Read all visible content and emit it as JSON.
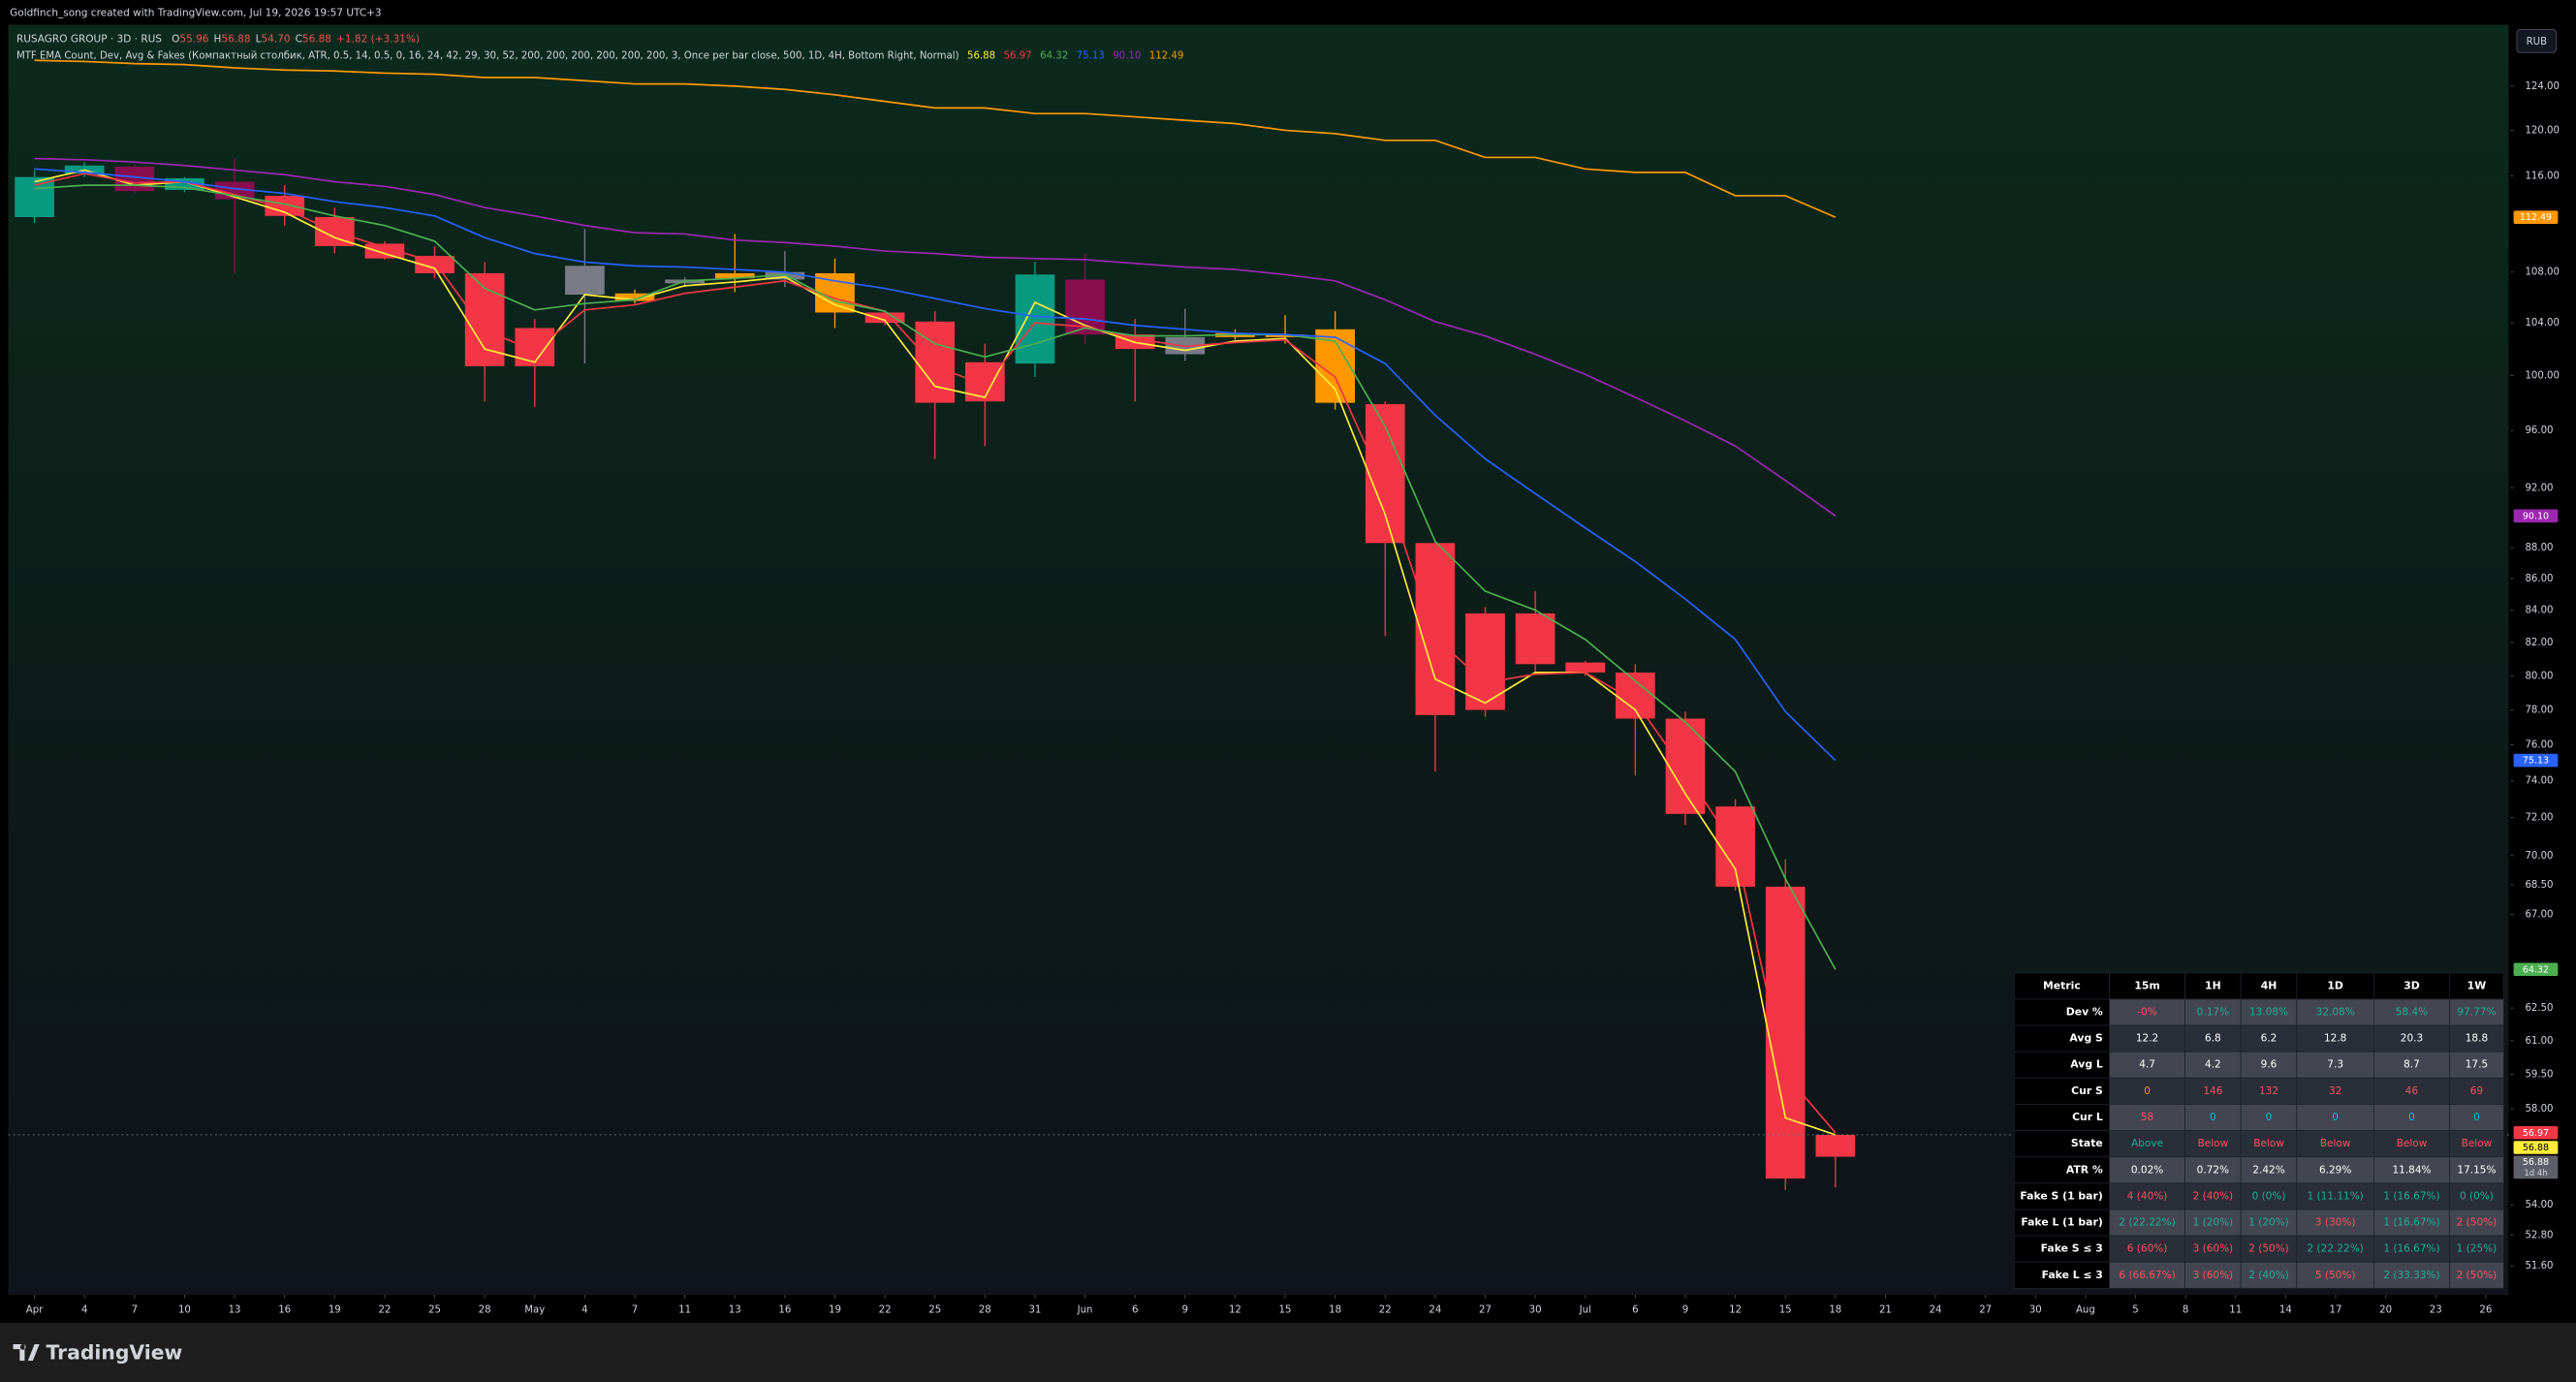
{
  "watermark": "Goldfinch_song created with TradingView.com, Jul 19, 2026 19:57 UTC+3",
  "brand": "TradingView",
  "currency": "RUB",
  "indicator_title": "MTF EMA Count, Dev, Avg & Fakes (Компактный столбик, ATR, 0.5, 14, 0.5, 0, 16, 24, 42, 29, 30, 52, 200, 200, 200, 200, 200, 200, 3, Once per bar close, 500, 1D, 4H, Bottom Right, Normal)",
  "ohlc_legend": [
    {
      "label": "O",
      "value": "55.96"
    },
    {
      "label": "H",
      "value": "56.88"
    },
    {
      "label": "L",
      "value": "54.70"
    },
    {
      "label": "C",
      "value": "56.88"
    }
  ],
  "change": "+1.82 (+3.31%)",
  "chart_data": {
    "type": "candlestick",
    "title": "RUSAGRO GROUP · 3D · RUS",
    "log_scale": true,
    "grid": false,
    "categories": [
      "Apr",
      "4",
      "7",
      "10",
      "13",
      "16",
      "19",
      "22",
      "25",
      "28",
      "May",
      "4",
      "7",
      "11",
      "13",
      "16",
      "19",
      "22",
      "25",
      "28",
      "31",
      "Jun",
      "6",
      "9",
      "12",
      "15",
      "18",
      "22",
      "24",
      "27",
      "30",
      "Jul",
      "6",
      "9",
      "12",
      "15",
      "18",
      "21",
      "24",
      "27",
      "30",
      "Aug",
      "5",
      "8",
      "11",
      "14",
      "17",
      "20",
      "23",
      "26"
    ],
    "open": [
      112.5,
      116.2,
      116.8,
      114.8,
      115.5,
      114.3,
      112.5,
      110.3,
      109.3,
      107.9,
      103.6,
      106.2,
      106.3,
      107.1,
      107.9,
      107.4,
      107.9,
      104.8,
      104.1,
      101.0,
      100.9,
      107.4,
      103.1,
      102.9,
      103.2,
      103.1,
      103.5,
      97.9,
      88.3,
      83.8,
      83.8,
      80.8,
      80.2,
      77.5,
      72.6,
      68.4,
      55.96,
      null,
      null,
      null,
      null,
      null,
      null,
      null,
      null,
      null,
      null,
      null,
      null,
      null
    ],
    "high": [
      116.5,
      117.2,
      117.0,
      115.9,
      117.5,
      115.2,
      113.3,
      110.5,
      110.1,
      108.8,
      104.3,
      111.5,
      106.6,
      107.6,
      111.1,
      109.7,
      109.1,
      105.0,
      104.9,
      102.4,
      108.8,
      109.5,
      104.3,
      105.1,
      103.5,
      104.6,
      104.9,
      98.1,
      88.4,
      84.2,
      85.2,
      80.9,
      80.7,
      77.9,
      73.0,
      69.8,
      56.88,
      null,
      null,
      null,
      null,
      null,
      null,
      null,
      null,
      null,
      null,
      null,
      null,
      null
    ],
    "low": [
      112.0,
      115.9,
      114.5,
      114.6,
      107.9,
      111.8,
      109.5,
      109.0,
      107.5,
      98.1,
      97.7,
      100.9,
      105.5,
      106.8,
      106.4,
      106.8,
      103.6,
      103.8,
      94.0,
      94.9,
      99.9,
      102.4,
      98.1,
      101.1,
      102.7,
      102.4,
      97.5,
      82.4,
      74.5,
      77.6,
      80.2,
      80.0,
      74.3,
      71.6,
      68.2,
      54.6,
      54.7,
      null,
      null,
      null,
      null,
      null,
      null,
      null,
      null,
      null,
      null,
      null,
      null,
      null
    ],
    "close": [
      115.9,
      116.9,
      114.7,
      115.8,
      114.0,
      112.6,
      110.1,
      109.1,
      107.9,
      100.7,
      100.7,
      108.5,
      105.7,
      107.4,
      107.5,
      108.0,
      104.8,
      104.0,
      98.0,
      98.1,
      107.8,
      103.1,
      102.0,
      101.6,
      102.9,
      102.9,
      98.0,
      88.3,
      77.7,
      78.0,
      80.7,
      80.2,
      77.5,
      72.2,
      68.4,
      55.06,
      56.88,
      null,
      null,
      null,
      null,
      null,
      null,
      null,
      null,
      null,
      null,
      null,
      null,
      null
    ],
    "colors": [
      "#089981",
      "#089981",
      "#880e4f",
      "#089981",
      "#880e4f",
      "#f23645",
      "#f23645",
      "#f23645",
      "#f23645",
      "#f23645",
      "#f23645",
      "#787b86",
      "#ff9800",
      "#787b86",
      "#ff9800",
      "#787b86",
      "#ff9800",
      "#f23645",
      "#f23645",
      "#f23645",
      "#089981",
      "#880e4f",
      "#f23645",
      "#787b86",
      "#ff9800",
      "#ff9800",
      "#ff9800",
      "#f23645",
      "#f23645",
      "#f23645",
      "#f23645",
      "#f23645",
      "#f23645",
      "#f23645",
      "#f23645",
      "#f23645",
      "#f23645",
      null,
      null,
      null,
      null,
      null,
      null,
      null,
      null,
      null,
      null,
      null,
      null,
      null
    ],
    "last_price_label": "56.88",
    "countdown": "1d 4h",
    "series": [
      {
        "color": "#ffeb3b",
        "end_label": "56.88",
        "values": [
          115.5,
          116.5,
          115.2,
          115.5,
          114.2,
          112.9,
          110.8,
          109.5,
          108.3,
          102.0,
          101.0,
          106.2,
          105.8,
          106.9,
          107.2,
          107.6,
          105.4,
          104.2,
          99.2,
          98.4,
          105.6,
          103.8,
          102.5,
          101.9,
          102.6,
          102.8,
          99.0,
          90.2,
          79.8,
          78.4,
          80.2,
          80.2,
          78.0,
          73.3,
          69.3,
          57.6,
          56.88,
          null,
          null,
          null,
          null,
          null,
          null,
          null,
          null,
          null,
          null,
          null,
          null,
          null
        ]
      },
      {
        "color": "#f23645",
        "end_label": "56.97",
        "values": [
          115.2,
          116.2,
          115.4,
          115.5,
          114.4,
          113.2,
          111.3,
          110.0,
          108.8,
          103.4,
          101.9,
          105.0,
          105.4,
          106.3,
          106.8,
          107.3,
          105.9,
          104.9,
          100.7,
          99.3,
          104.0,
          103.7,
          102.8,
          102.2,
          102.5,
          102.7,
          99.9,
          92.0,
          82.3,
          79.6,
          80.1,
          80.2,
          78.5,
          74.5,
          70.4,
          59.5,
          56.97,
          null,
          null,
          null,
          null,
          null,
          null,
          null,
          null,
          null,
          null,
          null,
          null,
          null
        ]
      },
      {
        "color": "#4caf50",
        "end_label": "64.32",
        "values": [
          114.9,
          115.2,
          115.2,
          115.0,
          114.3,
          113.6,
          112.6,
          111.8,
          110.5,
          106.7,
          105.0,
          105.5,
          105.8,
          107.3,
          107.5,
          107.8,
          105.7,
          104.9,
          102.4,
          101.4,
          102.4,
          103.6,
          103.0,
          103.0,
          103.1,
          103.1,
          102.6,
          96.3,
          88.4,
          85.2,
          84.0,
          82.2,
          79.7,
          77.3,
          74.5,
          68.8,
          64.32,
          null,
          null,
          null,
          null,
          null,
          null,
          null,
          null,
          null,
          null,
          null,
          null,
          null
        ]
      },
      {
        "color": "#2962ff",
        "end_label": "75.13",
        "values": [
          116.6,
          116.3,
          115.9,
          115.5,
          114.9,
          114.5,
          113.8,
          113.3,
          112.6,
          110.8,
          109.5,
          108.8,
          108.5,
          108.4,
          108.2,
          108.0,
          107.3,
          106.7,
          105.9,
          105.1,
          104.5,
          104.3,
          103.8,
          103.5,
          103.2,
          103.1,
          102.9,
          100.9,
          97.1,
          94.0,
          91.6,
          89.3,
          87.1,
          84.7,
          82.2,
          77.9,
          75.13,
          null,
          null,
          null,
          null,
          null,
          null,
          null,
          null,
          null,
          null,
          null,
          null,
          null
        ]
      },
      {
        "color": "#9c27b0",
        "end_label": "90.10",
        "values": [
          117.5,
          117.4,
          117.2,
          116.9,
          116.5,
          116.1,
          115.5,
          115.1,
          114.4,
          113.3,
          112.6,
          111.8,
          111.2,
          111.1,
          110.6,
          110.4,
          110.1,
          109.7,
          109.5,
          109.2,
          109.1,
          109.0,
          108.7,
          108.4,
          108.2,
          107.8,
          107.3,
          105.8,
          104.1,
          103.0,
          101.6,
          100.1,
          98.4,
          96.7,
          94.9,
          92.5,
          90.1,
          null,
          null,
          null,
          null,
          null,
          null,
          null,
          null,
          null,
          null,
          null,
          null,
          null
        ]
      },
      {
        "color": "#ff9800",
        "end_label": "112.49",
        "values": [
          126.4,
          126.3,
          126.1,
          126.0,
          125.7,
          125.5,
          125.4,
          125.2,
          125.1,
          124.8,
          124.8,
          124.5,
          124.2,
          124.2,
          124.0,
          123.7,
          123.2,
          122.6,
          122.0,
          122.0,
          121.5,
          121.5,
          121.2,
          120.9,
          120.6,
          120.0,
          119.7,
          119.1,
          119.1,
          117.6,
          117.6,
          116.6,
          116.3,
          116.3,
          114.3,
          114.3,
          112.49,
          null,
          null,
          null,
          null,
          null,
          null,
          null,
          null,
          null,
          null,
          null,
          null,
          null
        ]
      }
    ],
    "ylim": [
      50.5,
      129.8
    ],
    "yticks": [
      {
        "value": 124,
        "label": "124.00"
      },
      {
        "value": 120,
        "label": "120.00"
      },
      {
        "value": 116,
        "label": "116.00"
      },
      {
        "value": 108,
        "label": "108.00"
      },
      {
        "value": 104,
        "label": "104.00"
      },
      {
        "value": 100,
        "label": "100.00"
      },
      {
        "value": 96,
        "label": "96.00"
      },
      {
        "value": 92,
        "label": "92.00"
      },
      {
        "value": 88,
        "label": "88.00"
      },
      {
        "value": 86,
        "label": "86.00"
      },
      {
        "value": 84,
        "label": "84.00"
      },
      {
        "value": 82,
        "label": "82.00"
      },
      {
        "value": 80,
        "label": "80.00"
      },
      {
        "value": 78,
        "label": "78.00"
      },
      {
        "value": 76,
        "label": "76.00"
      },
      {
        "value": 74,
        "label": "74.00"
      },
      {
        "value": 72,
        "label": "72.00"
      },
      {
        "value": 70,
        "label": "70.00"
      },
      {
        "value": 68.5,
        "label": "68.50"
      },
      {
        "value": 67,
        "label": "67.00"
      },
      {
        "value": 62.5,
        "label": "62.50"
      },
      {
        "value": 61,
        "label": "61.00"
      },
      {
        "value": 59.5,
        "label": "59.50"
      },
      {
        "value": 58,
        "label": "58.00"
      },
      {
        "value": 54,
        "label": "54.00"
      },
      {
        "value": 52.8,
        "label": "52.80"
      },
      {
        "value": 51.6,
        "label": "51.60"
      }
    ]
  },
  "table": {
    "header": [
      "Metric",
      "15m",
      "1H",
      "4H",
      "1D",
      "3D",
      "1W"
    ],
    "rows": [
      {
        "metric": "Dev %",
        "cells": [
          {
            "text": "-0%",
            "color": "#f7525f"
          },
          {
            "text": "0.17%",
            "color": "#22ab94"
          },
          {
            "text": "13.08%",
            "color": "#22ab94"
          },
          {
            "text": "32.08%",
            "color": "#22ab94"
          },
          {
            "text": "58.4%",
            "color": "#22ab94"
          },
          {
            "text": "97.77%",
            "color": "#22ab94"
          }
        ]
      },
      {
        "metric": "Avg S",
        "cells": [
          {
            "text": "12.2",
            "color": "#ffffff"
          },
          {
            "text": "6.8",
            "color": "#ffffff"
          },
          {
            "text": "6.2",
            "color": "#ffffff"
          },
          {
            "text": "12.8",
            "color": "#ffffff"
          },
          {
            "text": "20.3",
            "color": "#ffffff"
          },
          {
            "text": "18.8",
            "color": "#ffffff"
          }
        ]
      },
      {
        "metric": "Avg L",
        "cells": [
          {
            "text": "4.7",
            "color": "#ffffff"
          },
          {
            "text": "4.2",
            "color": "#ffffff"
          },
          {
            "text": "9.6",
            "color": "#ffffff"
          },
          {
            "text": "7.3",
            "color": "#ffffff"
          },
          {
            "text": "8.7",
            "color": "#ffffff"
          },
          {
            "text": "17.5",
            "color": "#ffffff"
          }
        ]
      },
      {
        "metric": "Cur S",
        "cells": [
          {
            "text": "0",
            "color": "#ff9800"
          },
          {
            "text": "146",
            "color": "#f7525f"
          },
          {
            "text": "132",
            "color": "#f7525f"
          },
          {
            "text": "32",
            "color": "#f7525f"
          },
          {
            "text": "46",
            "color": "#f7525f"
          },
          {
            "text": "69",
            "color": "#f7525f"
          }
        ]
      },
      {
        "metric": "Cur L",
        "cells": [
          {
            "text": "58",
            "color": "#f7525f"
          },
          {
            "text": "0",
            "color": "#00bcd4"
          },
          {
            "text": "0",
            "color": "#00bcd4"
          },
          {
            "text": "0",
            "color": "#00bcd4"
          },
          {
            "text": "0",
            "color": "#00bcd4"
          },
          {
            "text": "0",
            "color": "#00bcd4"
          }
        ]
      },
      {
        "metric": "State",
        "cells": [
          {
            "text": "Above",
            "color": "#22ab94"
          },
          {
            "text": "Below",
            "color": "#f7525f"
          },
          {
            "text": "Below",
            "color": "#f7525f"
          },
          {
            "text": "Below",
            "color": "#f7525f"
          },
          {
            "text": "Below",
            "color": "#f7525f"
          },
          {
            "text": "Below",
            "color": "#f7525f"
          }
        ]
      },
      {
        "metric": "ATR %",
        "cells": [
          {
            "text": "0.02%",
            "color": "#ffffff"
          },
          {
            "text": "0.72%",
            "color": "#ffffff"
          },
          {
            "text": "2.42%",
            "color": "#ffffff"
          },
          {
            "text": "6.29%",
            "color": "#ffffff"
          },
          {
            "text": "11.84%",
            "color": "#ffffff"
          },
          {
            "text": "17.15%",
            "color": "#ffffff"
          }
        ]
      },
      {
        "metric": "Fake S (1 bar)",
        "cells": [
          {
            "text": "4 (40%)",
            "color": "#f7525f"
          },
          {
            "text": "2 (40%)",
            "color": "#f7525f"
          },
          {
            "text": "0 (0%)",
            "color": "#22ab94"
          },
          {
            "text": "1 (11.11%)",
            "color": "#22ab94"
          },
          {
            "text": "1 (16.67%)",
            "color": "#22ab94"
          },
          {
            "text": "0 (0%)",
            "color": "#22ab94"
          }
        ]
      },
      {
        "metric": "Fake L (1 bar)",
        "cells": [
          {
            "text": "2 (22.22%)",
            "color": "#22ab94"
          },
          {
            "text": "1 (20%)",
            "color": "#22ab94"
          },
          {
            "text": "1 (20%)",
            "color": "#22ab94"
          },
          {
            "text": "3 (30%)",
            "color": "#f7525f"
          },
          {
            "text": "1 (16.67%)",
            "color": "#22ab94"
          },
          {
            "text": "2 (50%)",
            "color": "#f7525f"
          }
        ]
      },
      {
        "metric": "Fake S ≤ 3",
        "cells": [
          {
            "text": "6 (60%)",
            "color": "#f7525f"
          },
          {
            "text": "3 (60%)",
            "color": "#f7525f"
          },
          {
            "text": "2 (50%)",
            "color": "#f7525f"
          },
          {
            "text": "2 (22.22%)",
            "color": "#22ab94"
          },
          {
            "text": "1 (16.67%)",
            "color": "#22ab94"
          },
          {
            "text": "1 (25%)",
            "color": "#22ab94"
          }
        ]
      },
      {
        "metric": "Fake L ≤ 3",
        "cells": [
          {
            "text": "6 (66.67%)",
            "color": "#f7525f"
          },
          {
            "text": "3 (60%)",
            "color": "#f7525f"
          },
          {
            "text": "2 (40%)",
            "color": "#22ab94"
          },
          {
            "text": "5 (50%)",
            "color": "#f7525f"
          },
          {
            "text": "2 (33.33%)",
            "color": "#22ab94"
          },
          {
            "text": "2 (50%)",
            "color": "#f7525f"
          }
        ]
      }
    ]
  }
}
